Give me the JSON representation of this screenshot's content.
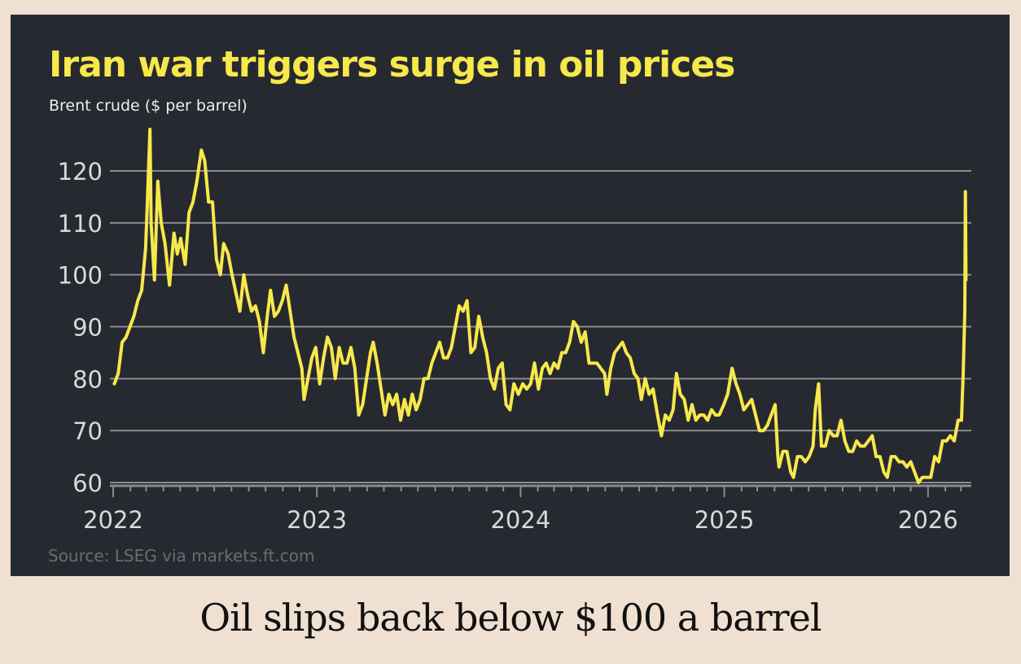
{
  "caption": "Oil slips back below $100 a barrel",
  "colors": {
    "background": "#efe0d1",
    "panel": "#272930",
    "line": "#f7e84b",
    "grid": "#8a8a90",
    "text": "#d8d9de"
  },
  "chart_data": {
    "type": "line",
    "title": "Iran war triggers surge in oil prices",
    "subtitle": "Brent crude ($ per barrel)",
    "source": "Source: LSEG via markets.ft.com",
    "xlabel": "",
    "ylabel": "",
    "ylim": [
      60,
      120
    ],
    "yticks": [
      60,
      70,
      80,
      90,
      100,
      110,
      120
    ],
    "xticks": [
      "2022",
      "2023",
      "2024",
      "2025",
      "2026"
    ],
    "xlim": [
      "2022-01-01",
      "2026-03-31"
    ],
    "grid": true,
    "legend": "none",
    "series": [
      {
        "points": [
          [
            "2022-01-03",
            79
          ],
          [
            "2022-01-10",
            81
          ],
          [
            "2022-01-17",
            87
          ],
          [
            "2022-01-24",
            88
          ],
          [
            "2022-01-31",
            90
          ],
          [
            "2022-02-07",
            92
          ],
          [
            "2022-02-14",
            95
          ],
          [
            "2022-02-21",
            97
          ],
          [
            "2022-02-28",
            105
          ],
          [
            "2022-03-03",
            113
          ],
          [
            "2022-03-08",
            128
          ],
          [
            "2022-03-10",
            110
          ],
          [
            "2022-03-16",
            99
          ],
          [
            "2022-03-22",
            118
          ],
          [
            "2022-03-28",
            110
          ],
          [
            "2022-04-04",
            106
          ],
          [
            "2022-04-12",
            98
          ],
          [
            "2022-04-20",
            108
          ],
          [
            "2022-04-26",
            104
          ],
          [
            "2022-05-02",
            107
          ],
          [
            "2022-05-10",
            102
          ],
          [
            "2022-05-17",
            112
          ],
          [
            "2022-05-24",
            114
          ],
          [
            "2022-05-31",
            118
          ],
          [
            "2022-06-08",
            124
          ],
          [
            "2022-06-14",
            122
          ],
          [
            "2022-06-21",
            114
          ],
          [
            "2022-06-28",
            114
          ],
          [
            "2022-07-05",
            103
          ],
          [
            "2022-07-12",
            100
          ],
          [
            "2022-07-18",
            106
          ],
          [
            "2022-07-26",
            104
          ],
          [
            "2022-08-02",
            100
          ],
          [
            "2022-08-08",
            97
          ],
          [
            "2022-08-16",
            93
          ],
          [
            "2022-08-23",
            100
          ],
          [
            "2022-08-30",
            96
          ],
          [
            "2022-09-06",
            93
          ],
          [
            "2022-09-13",
            94
          ],
          [
            "2022-09-20",
            91
          ],
          [
            "2022-09-27",
            85
          ],
          [
            "2022-10-04",
            92
          ],
          [
            "2022-10-10",
            97
          ],
          [
            "2022-10-17",
            92
          ],
          [
            "2022-10-24",
            93
          ],
          [
            "2022-10-31",
            95
          ],
          [
            "2022-11-07",
            98
          ],
          [
            "2022-11-14",
            93
          ],
          [
            "2022-11-21",
            88
          ],
          [
            "2022-11-28",
            85
          ],
          [
            "2022-12-05",
            82
          ],
          [
            "2022-12-09",
            76
          ],
          [
            "2022-12-16",
            80
          ],
          [
            "2022-12-23",
            84
          ],
          [
            "2022-12-30",
            86
          ],
          [
            "2023-01-06",
            79
          ],
          [
            "2023-01-13",
            84
          ],
          [
            "2023-01-20",
            88
          ],
          [
            "2023-01-27",
            86
          ],
          [
            "2023-02-03",
            80
          ],
          [
            "2023-02-10",
            86
          ],
          [
            "2023-02-17",
            83
          ],
          [
            "2023-02-24",
            83
          ],
          [
            "2023-03-03",
            86
          ],
          [
            "2023-03-10",
            82
          ],
          [
            "2023-03-17",
            73
          ],
          [
            "2023-03-24",
            75
          ],
          [
            "2023-03-31",
            80
          ],
          [
            "2023-04-07",
            85
          ],
          [
            "2023-04-12",
            87
          ],
          [
            "2023-04-19",
            83
          ],
          [
            "2023-04-26",
            78
          ],
          [
            "2023-05-03",
            73
          ],
          [
            "2023-05-10",
            77
          ],
          [
            "2023-05-17",
            75
          ],
          [
            "2023-05-24",
            77
          ],
          [
            "2023-05-31",
            72
          ],
          [
            "2023-06-07",
            76
          ],
          [
            "2023-06-14",
            73
          ],
          [
            "2023-06-21",
            77
          ],
          [
            "2023-06-28",
            74
          ],
          [
            "2023-07-05",
            76
          ],
          [
            "2023-07-12",
            80
          ],
          [
            "2023-07-19",
            80
          ],
          [
            "2023-07-26",
            83
          ],
          [
            "2023-08-02",
            85
          ],
          [
            "2023-08-09",
            87
          ],
          [
            "2023-08-16",
            84
          ],
          [
            "2023-08-23",
            84
          ],
          [
            "2023-08-30",
            86
          ],
          [
            "2023-09-06",
            90
          ],
          [
            "2023-09-13",
            94
          ],
          [
            "2023-09-20",
            93
          ],
          [
            "2023-09-27",
            95
          ],
          [
            "2023-10-04",
            85
          ],
          [
            "2023-10-11",
            86
          ],
          [
            "2023-10-18",
            92
          ],
          [
            "2023-10-25",
            88
          ],
          [
            "2023-11-01",
            85
          ],
          [
            "2023-11-08",
            80
          ],
          [
            "2023-11-15",
            78
          ],
          [
            "2023-11-22",
            82
          ],
          [
            "2023-11-29",
            83
          ],
          [
            "2023-12-06",
            75
          ],
          [
            "2023-12-13",
            74
          ],
          [
            "2023-12-20",
            79
          ],
          [
            "2023-12-28",
            77
          ],
          [
            "2024-01-05",
            79
          ],
          [
            "2024-01-12",
            78
          ],
          [
            "2024-01-19",
            79
          ],
          [
            "2024-01-26",
            83
          ],
          [
            "2024-02-02",
            78
          ],
          [
            "2024-02-09",
            82
          ],
          [
            "2024-02-16",
            83
          ],
          [
            "2024-02-23",
            81
          ],
          [
            "2024-03-01",
            83
          ],
          [
            "2024-03-08",
            82
          ],
          [
            "2024-03-15",
            85
          ],
          [
            "2024-03-22",
            85
          ],
          [
            "2024-03-29",
            87
          ],
          [
            "2024-04-05",
            91
          ],
          [
            "2024-04-12",
            90
          ],
          [
            "2024-04-19",
            87
          ],
          [
            "2024-04-26",
            89
          ],
          [
            "2024-05-03",
            83
          ],
          [
            "2024-05-10",
            83
          ],
          [
            "2024-05-17",
            83
          ],
          [
            "2024-05-24",
            82
          ],
          [
            "2024-05-31",
            81
          ],
          [
            "2024-06-04",
            77
          ],
          [
            "2024-06-11",
            82
          ],
          [
            "2024-06-18",
            85
          ],
          [
            "2024-06-25",
            86
          ],
          [
            "2024-07-02",
            87
          ],
          [
            "2024-07-09",
            85
          ],
          [
            "2024-07-16",
            84
          ],
          [
            "2024-07-23",
            81
          ],
          [
            "2024-07-30",
            80
          ],
          [
            "2024-08-05",
            76
          ],
          [
            "2024-08-12",
            80
          ],
          [
            "2024-08-19",
            77
          ],
          [
            "2024-08-26",
            78
          ],
          [
            "2024-09-03",
            73
          ],
          [
            "2024-09-10",
            69
          ],
          [
            "2024-09-17",
            73
          ],
          [
            "2024-09-24",
            72
          ],
          [
            "2024-10-01",
            74
          ],
          [
            "2024-10-07",
            81
          ],
          [
            "2024-10-14",
            77
          ],
          [
            "2024-10-21",
            76
          ],
          [
            "2024-10-28",
            72
          ],
          [
            "2024-11-04",
            75
          ],
          [
            "2024-11-11",
            72
          ],
          [
            "2024-11-18",
            73
          ],
          [
            "2024-11-25",
            73
          ],
          [
            "2024-12-02",
            72
          ],
          [
            "2024-12-09",
            74
          ],
          [
            "2024-12-16",
            73
          ],
          [
            "2024-12-23",
            73
          ],
          [
            "2024-12-31",
            75
          ],
          [
            "2025-01-07",
            77
          ],
          [
            "2025-01-15",
            82
          ],
          [
            "2025-01-22",
            79
          ],
          [
            "2025-01-29",
            77
          ],
          [
            "2025-02-05",
            74
          ],
          [
            "2025-02-12",
            75
          ],
          [
            "2025-02-19",
            76
          ],
          [
            "2025-02-26",
            73
          ],
          [
            "2025-03-05",
            70
          ],
          [
            "2025-03-12",
            70
          ],
          [
            "2025-03-19",
            71
          ],
          [
            "2025-03-26",
            73
          ],
          [
            "2025-04-02",
            75
          ],
          [
            "2025-04-07",
            65
          ],
          [
            "2025-04-09",
            63
          ],
          [
            "2025-04-16",
            66
          ],
          [
            "2025-04-23",
            66
          ],
          [
            "2025-04-30",
            62
          ],
          [
            "2025-05-05",
            61
          ],
          [
            "2025-05-12",
            65
          ],
          [
            "2025-05-19",
            65
          ],
          [
            "2025-05-26",
            64
          ],
          [
            "2025-06-02",
            65
          ],
          [
            "2025-06-09",
            67
          ],
          [
            "2025-06-13",
            74
          ],
          [
            "2025-06-19",
            79
          ],
          [
            "2025-06-24",
            67
          ],
          [
            "2025-07-01",
            67
          ],
          [
            "2025-07-08",
            70
          ],
          [
            "2025-07-15",
            69
          ],
          [
            "2025-07-22",
            69
          ],
          [
            "2025-07-29",
            72
          ],
          [
            "2025-08-05",
            68
          ],
          [
            "2025-08-12",
            66
          ],
          [
            "2025-08-19",
            66
          ],
          [
            "2025-08-26",
            68
          ],
          [
            "2025-09-02",
            67
          ],
          [
            "2025-09-09",
            67
          ],
          [
            "2025-09-16",
            68
          ],
          [
            "2025-09-23",
            69
          ],
          [
            "2025-09-30",
            65
          ],
          [
            "2025-10-07",
            65
          ],
          [
            "2025-10-14",
            62
          ],
          [
            "2025-10-20",
            61
          ],
          [
            "2025-10-27",
            65
          ],
          [
            "2025-11-03",
            65
          ],
          [
            "2025-11-10",
            64
          ],
          [
            "2025-11-17",
            64
          ],
          [
            "2025-11-24",
            63
          ],
          [
            "2025-12-01",
            64
          ],
          [
            "2025-12-08",
            62
          ],
          [
            "2025-12-15",
            60
          ],
          [
            "2025-12-22",
            61
          ],
          [
            "2025-12-30",
            61
          ],
          [
            "2026-01-06",
            61
          ],
          [
            "2026-01-13",
            65
          ],
          [
            "2026-01-20",
            64
          ],
          [
            "2026-01-27",
            68
          ],
          [
            "2026-02-03",
            68
          ],
          [
            "2026-02-10",
            69
          ],
          [
            "2026-02-17",
            68
          ],
          [
            "2026-02-24",
            72
          ],
          [
            "2026-03-02",
            72
          ],
          [
            "2026-03-05",
            81
          ],
          [
            "2026-03-08",
            93
          ],
          [
            "2026-03-09",
            116
          ],
          [
            "2026-03-10",
            99
          ]
        ]
      }
    ]
  }
}
